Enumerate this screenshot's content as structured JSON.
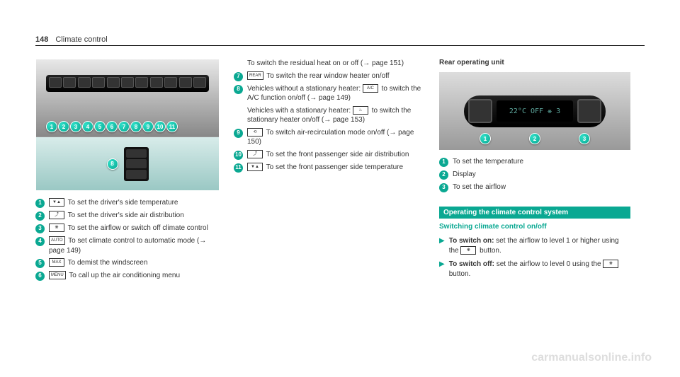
{
  "header": {
    "page_number": "148",
    "section": "Climate control"
  },
  "col1": {
    "top_callouts": [
      "1",
      "2",
      "3",
      "4",
      "5",
      "6",
      "7",
      "8",
      "9",
      "10",
      "11"
    ],
    "sub_callout": "8",
    "items": [
      {
        "num": "1",
        "icon": "▼▲",
        "text": "To set the driver's side temperature"
      },
      {
        "num": "2",
        "icon": "⤴",
        "text": "To set the driver's side air distribution"
      },
      {
        "num": "3",
        "icon": "❋",
        "text": "To set the airflow or switch off climate control"
      },
      {
        "num": "4",
        "icon": "AUTO",
        "text": "To set climate control to automatic mode (→ page 149)"
      },
      {
        "num": "5",
        "icon": "MAX",
        "text": "To demist the windscreen"
      },
      {
        "num": "6",
        "icon": "MENU",
        "text": "To call up the air conditioning menu"
      }
    ]
  },
  "col2": {
    "lead": "To switch the residual heat on or off (→ page 151)",
    "items": [
      {
        "num": "7",
        "icon": "REAR",
        "text": "To switch the rear window heater on/off"
      },
      {
        "num": "8",
        "icon": "A/C",
        "text_before": "Vehicles without a stationary heater: ",
        "text_after": " to switch the A/C function on/off (→ page 149)"
      },
      {
        "num": "8b",
        "icon": "♨",
        "text_before": "Vehicles with a stationary heater: ",
        "text_after": " to switch the stationary heater on/off (→ page 153)"
      },
      {
        "num": "9",
        "icon": "⟲",
        "text": "To switch air-recirculation mode on/off (→ page 150)"
      },
      {
        "num": "10",
        "icon": "⤴",
        "text": "To set the front passenger side air distribution"
      },
      {
        "num": "11",
        "icon": "▼▲",
        "text": "To set the front passenger side temperature"
      }
    ]
  },
  "col3": {
    "rear_heading": "Rear operating unit",
    "rear_display": {
      "temp": "22°C",
      "mode": "OFF",
      "fan": "❋ 3"
    },
    "rear_callouts": [
      "1",
      "2",
      "3"
    ],
    "rear_items": [
      {
        "num": "1",
        "text": "To set the temperature"
      },
      {
        "num": "2",
        "text": "Display"
      },
      {
        "num": "3",
        "text": "To set the airflow"
      }
    ],
    "section_bar": "Operating the climate control system",
    "sub_heading": "Switching climate control on/off",
    "bullets": [
      {
        "bold": "To switch on:",
        "rest": " set the airflow to level 1 or higher using the ",
        "icon": "❋",
        "tail": " button."
      },
      {
        "bold": "To switch off:",
        "rest": " set the airflow to level 0 using the ",
        "icon": "❋",
        "tail": " button."
      }
    ]
  },
  "watermark": "carmanualsonline.info"
}
